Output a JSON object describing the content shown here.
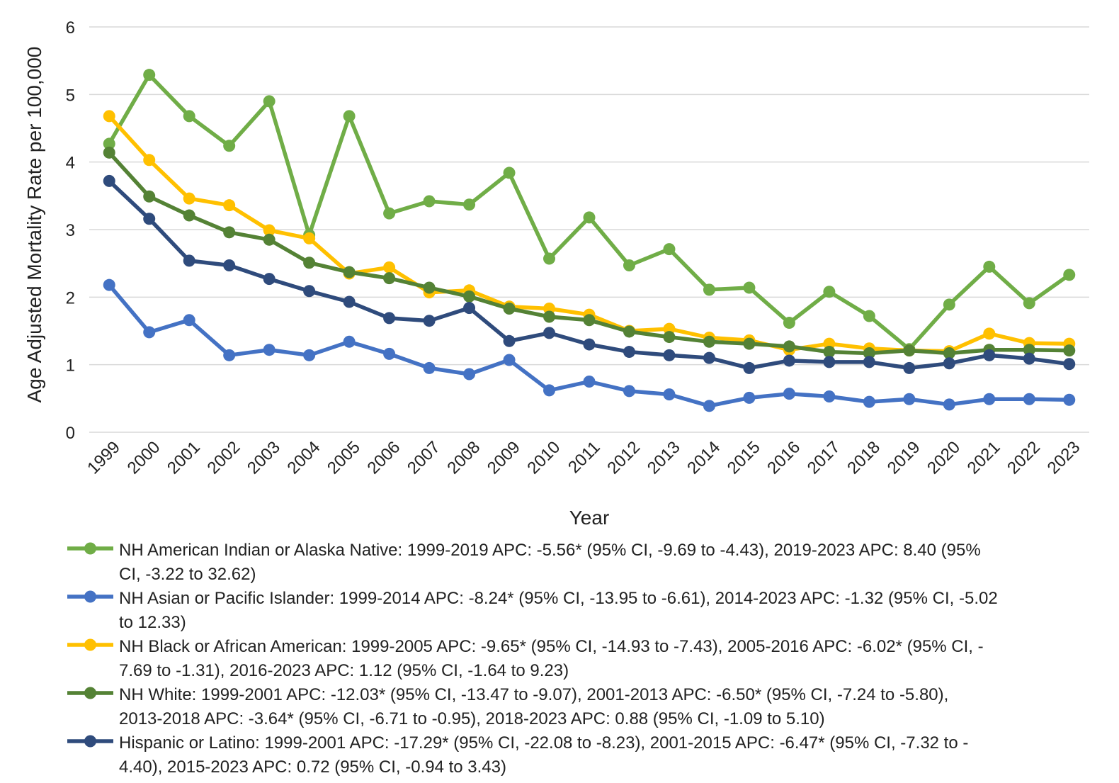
{
  "chart_data": {
    "type": "line",
    "title": "",
    "xlabel": "Year",
    "ylabel": "Age Adjusted Mortality Rate per 100,000",
    "ylim": [
      0,
      6
    ],
    "yticks": [
      0,
      1,
      2,
      3,
      4,
      5,
      6
    ],
    "grid": true,
    "legend_position": "bottom",
    "categories": [
      "1999",
      "2000",
      "2001",
      "2002",
      "2003",
      "2004",
      "2005",
      "2006",
      "2007",
      "2008",
      "2009",
      "2010",
      "2011",
      "2012",
      "2013",
      "2014",
      "2015",
      "2016",
      "2017",
      "2018",
      "2019",
      "2020",
      "2021",
      "2022",
      "2023"
    ],
    "series": [
      {
        "name": "NH American Indian or Alaska Native: 1999-2019 APC: -5.56* (95% CI, -9.69 to -4.43), 2019-2023 APC: 8.40 (95% CI, -3.22 to 32.62)",
        "legend_lines": [
          "NH American Indian or Alaska Native: 1999-2019 APC: -5.56* (95% CI, -9.69 to -4.43), 2019-2023 APC: 8.40 (95%",
          "CI, -3.22 to 32.62)"
        ],
        "color": "#70AD47",
        "values": [
          4.27,
          5.29,
          4.68,
          4.24,
          4.9,
          2.92,
          4.68,
          3.24,
          3.42,
          3.37,
          3.84,
          2.57,
          3.18,
          2.47,
          2.71,
          2.11,
          2.14,
          1.62,
          2.08,
          1.72,
          1.23,
          1.89,
          2.45,
          1.91,
          2.33
        ]
      },
      {
        "name": "NH Asian or Pacific Islander: 1999-2014 APC: -8.24* (95% CI, -13.95 to -6.61), 2014-2023 APC: -1.32 (95% CI, -5.02 to 12.33)",
        "legend_lines": [
          "NH Asian or Pacific Islander: 1999-2014 APC: -8.24* (95% CI, -13.95 to -6.61), 2014-2023 APC: -1.32 (95% CI, -5.02",
          "to 12.33)"
        ],
        "color": "#4472C4",
        "values": [
          2.18,
          1.48,
          1.66,
          1.14,
          1.22,
          1.14,
          1.34,
          1.16,
          0.95,
          0.86,
          1.07,
          0.62,
          0.75,
          0.61,
          0.56,
          0.39,
          0.51,
          0.57,
          0.53,
          0.45,
          0.49,
          0.41,
          0.49,
          0.49,
          0.48
        ]
      },
      {
        "name": "NH Black or African American: 1999-2005 APC: -9.65* (95% CI, -14.93 to -7.43), 2005-2016 APC: -6.02* (95% CI, -7.69 to -1.31), 2016-2023 APC: 1.12 (95% CI, -1.64 to 9.23)",
        "legend_lines": [
          "NH Black or African American: 1999-2005 APC: -9.65* (95% CI, -14.93 to -7.43), 2005-2016 APC: -6.02* (95% CI, -",
          "7.69 to -1.31), 2016-2023 APC: 1.12 (95% CI, -1.64 to 9.23)"
        ],
        "color": "#FFC000",
        "values": [
          4.68,
          4.03,
          3.46,
          3.36,
          2.99,
          2.87,
          2.35,
          2.44,
          2.07,
          2.1,
          1.86,
          1.83,
          1.74,
          1.5,
          1.53,
          1.4,
          1.36,
          1.22,
          1.31,
          1.24,
          1.21,
          1.2,
          1.46,
          1.32,
          1.31
        ]
      },
      {
        "name": "NH White: 1999-2001 APC: -12.03* (95% CI, -13.47 to -9.07), 2001-2013 APC: -6.50* (95% CI, -7.24 to -5.80), 2013-2018 APC: -3.64* (95% CI, -6.71 to -0.95), 2018-2023 APC: 0.88 (95% CI, -1.09 to 5.10)",
        "legend_lines": [
          "NH White: 1999-2001 APC: -12.03* (95% CI, -13.47 to -9.07), 2001-2013 APC: -6.50* (95% CI, -7.24 to -5.80),",
          "2013-2018 APC: -3.64* (95% CI, -6.71 to -0.95), 2018-2023 APC: 0.88 (95% CI, -1.09 to 5.10)"
        ],
        "color": "#548235",
        "values": [
          4.14,
          3.49,
          3.21,
          2.96,
          2.85,
          2.51,
          2.37,
          2.28,
          2.14,
          2.01,
          1.83,
          1.71,
          1.66,
          1.49,
          1.41,
          1.34,
          1.31,
          1.27,
          1.19,
          1.17,
          1.21,
          1.17,
          1.22,
          1.22,
          1.21
        ]
      },
      {
        "name": "Hispanic or Latino: 1999-2001 APC: -17.29* (95% CI, -22.08 to -8.23), 2001-2015 APC: -6.47* (95% CI, -7.32 to -4.40), 2015-2023 APC: 0.72 (95% CI, -0.94 to 3.43)",
        "legend_lines": [
          "Hispanic or Latino: 1999-2001 APC: -17.29* (95% CI, -22.08 to -8.23), 2001-2015 APC: -6.47* (95% CI, -7.32 to -",
          "4.40), 2015-2023 APC: 0.72 (95% CI, -0.94 to 3.43)"
        ],
        "color": "#2F4B7C",
        "values": [
          3.72,
          3.16,
          2.54,
          2.47,
          2.27,
          2.09,
          1.93,
          1.69,
          1.65,
          1.84,
          1.35,
          1.47,
          1.3,
          1.19,
          1.14,
          1.1,
          0.95,
          1.06,
          1.04,
          1.04,
          0.95,
          1.02,
          1.14,
          1.09,
          1.01
        ]
      }
    ]
  }
}
